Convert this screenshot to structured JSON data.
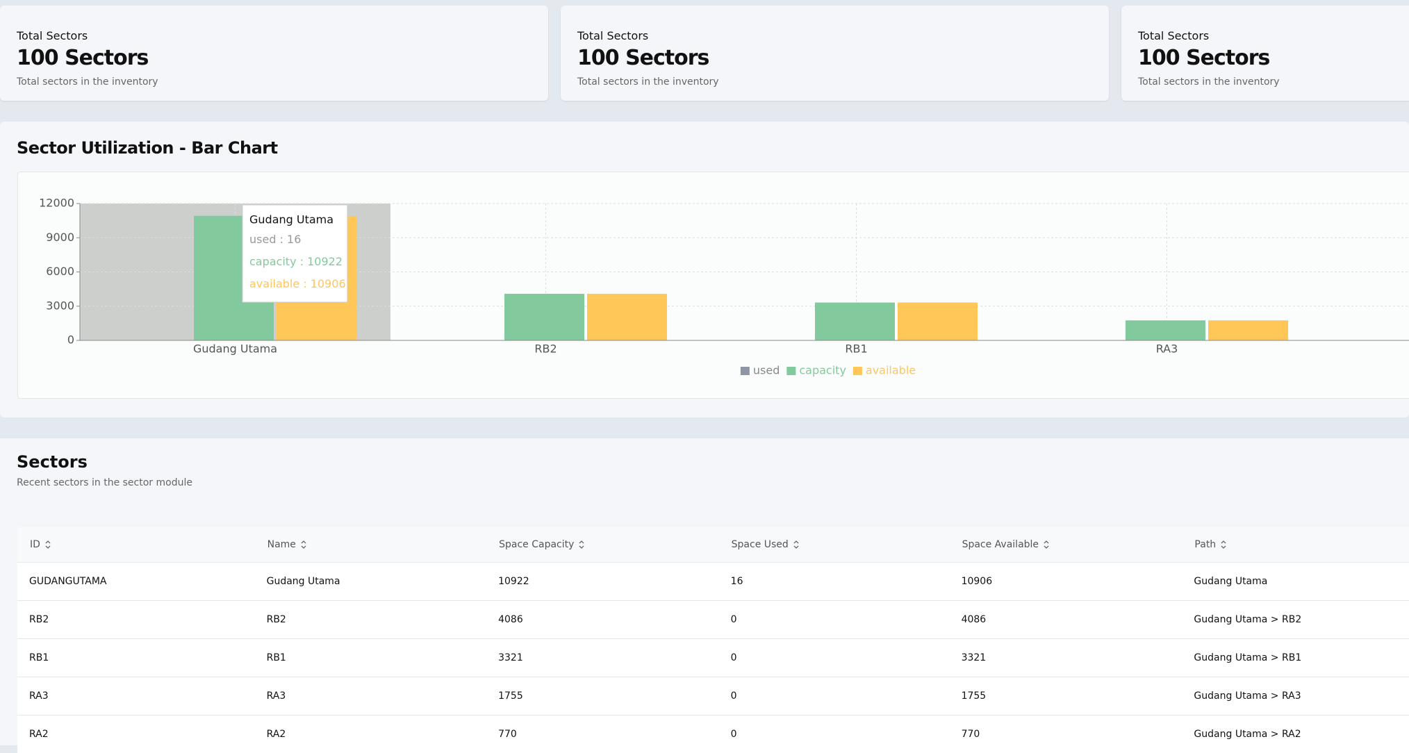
{
  "cards": [
    {
      "label": "Total Sectors",
      "value": "100 Sectors",
      "description": "Total sectors in the inventory"
    },
    {
      "label": "Total Sectors",
      "value": "100 Sectors",
      "description": "Total sectors in the inventory"
    },
    {
      "label": "Total Sectors",
      "value": "100 Sectors",
      "description": "Total sectors in the inventory"
    }
  ],
  "chart_data": {
    "type": "bar",
    "title": "Sector Utilization - Bar Chart",
    "categories": [
      "Gudang Utama",
      "RB2",
      "RB1",
      "RA3"
    ],
    "series": [
      {
        "name": "used",
        "color": "#8e95a3",
        "values": [
          16,
          0,
          0,
          0
        ]
      },
      {
        "name": "capacity",
        "color": "#82ca9d",
        "values": [
          10922,
          4086,
          3321,
          1755
        ]
      },
      {
        "name": "available",
        "color": "#ffc658",
        "values": [
          10906,
          4086,
          3321,
          1755
        ]
      }
    ],
    "ylim": [
      0,
      12000
    ],
    "yticks": [
      0,
      3000,
      6000,
      9000,
      12000
    ],
    "grid": true,
    "legend": "bottom"
  },
  "table": {
    "title": "Sectors",
    "subtitle": "Recent sectors in the sector module",
    "columns": [
      "ID",
      "Name",
      "Space Capacity",
      "Space Used",
      "Space Available",
      "Path"
    ],
    "rows": [
      [
        "GUDANGUTAMA",
        "Gudang Utama",
        "10922",
        "16",
        "10906",
        "Gudang Utama"
      ],
      [
        "RB2",
        "RB2",
        "4086",
        "0",
        "4086",
        "Gudang Utama > RB2"
      ],
      [
        "RB1",
        "RB1",
        "3321",
        "0",
        "3321",
        "Gudang Utama > RB1"
      ],
      [
        "RA3",
        "RA3",
        "1755",
        "0",
        "1755",
        "Gudang Utama > RA3"
      ],
      [
        "RA2",
        "RA2",
        "770",
        "0",
        "770",
        "Gudang Utama > RA2"
      ]
    ]
  }
}
